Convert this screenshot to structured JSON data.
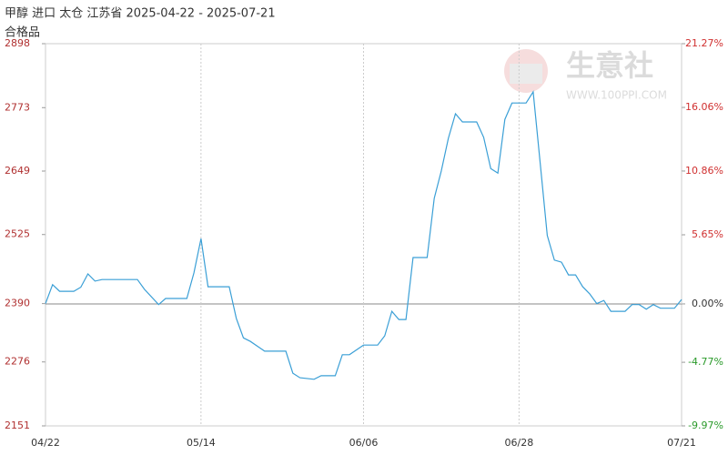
{
  "chart_data": {
    "type": "line",
    "title": "甲醇 进口 太仓 江苏省 2025-04-22 - 2025-07-21",
    "subtitle": "合格品",
    "watermark": [
      "生意社",
      "WWW.100PPI.COM"
    ],
    "x": [
      "04/22",
      "04/23",
      "04/24",
      "04/26",
      "04/27",
      "04/28",
      "04/29",
      "04/30",
      "05/05",
      "05/06",
      "05/08",
      "05/09",
      "05/12",
      "05/13",
      "05/14",
      "05/15",
      "05/18",
      "05/19",
      "05/20",
      "05/21",
      "05/23",
      "05/26",
      "05/27",
      "05/28",
      "05/30",
      "05/31",
      "06/02",
      "06/03",
      "06/04",
      "06/06",
      "06/08",
      "06/09",
      "06/10",
      "06/11",
      "06/12",
      "06/13",
      "06/15",
      "06/16",
      "06/17",
      "06/18",
      "06/19",
      "06/20",
      "06/22",
      "06/23",
      "06/24",
      "06/25",
      "06/26",
      "06/27",
      "06/29",
      "06/30",
      "07/01",
      "07/02",
      "07/03",
      "07/04",
      "07/05",
      "07/06",
      "07/07",
      "07/08",
      "07/09",
      "07/10",
      "07/11",
      "07/13",
      "07/14",
      "07/15",
      "07/16",
      "07/17",
      "07/18",
      "07/20",
      "07/21"
    ],
    "series": [
      {
        "name": "合格品",
        "color": "#3a9fd6",
        "values": [
          2390,
          2427,
          2414,
          2414,
          2422,
          2448,
          2434,
          2437,
          2437,
          2418,
          2388,
          2400,
          2400,
          2450,
          2517,
          2423,
          2423,
          2361,
          2323,
          2316,
          2297,
          2297,
          2254,
          2245,
          2242,
          2249,
          2249,
          2290,
          2290,
          2309,
          2309,
          2327,
          2375,
          2359,
          2359,
          2480,
          2480,
          2596,
          2649,
          2713,
          2761,
          2745,
          2745,
          2715,
          2654,
          2645,
          2750,
          2782,
          2782,
          2804,
          2663,
          2523,
          2475,
          2471,
          2446,
          2446,
          2423,
          2409,
          2390,
          2396,
          2375,
          2375,
          2388,
          2388,
          2379,
          2388,
          2381,
          2381,
          2398
        ]
      }
    ],
    "xlim": [
      "04/22",
      "07/21"
    ],
    "xticks": [
      "04/22",
      "05/14",
      "06/06",
      "06/28",
      "07/21"
    ],
    "ylim": [
      2151,
      2898
    ],
    "yticks": [
      2151,
      2276,
      2390,
      2525,
      2649,
      2773,
      2898
    ],
    "y2lim": [
      -9.97,
      21.27
    ],
    "y2ticks": [
      {
        "value": -9.97,
        "label": "-9.97%"
      },
      {
        "value": -4.77,
        "label": "-4.77%"
      },
      {
        "value": 0,
        "label": "0.00%"
      },
      {
        "value": 5.65,
        "label": "5.65%"
      },
      {
        "value": 10.86,
        "label": "10.86%"
      },
      {
        "value": 16.06,
        "label": "16.06%"
      },
      {
        "value": 21.27,
        "label": "21.27%"
      }
    ],
    "grid": true
  }
}
